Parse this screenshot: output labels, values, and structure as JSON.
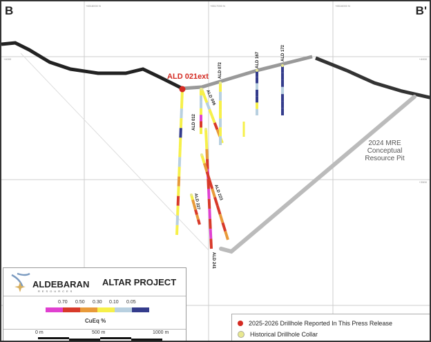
{
  "section": {
    "start_label": "B",
    "end_label": "B'"
  },
  "grid": {
    "northings": [
      "+6518000 N",
      "+6517000 N",
      "+6516000 N"
    ],
    "elevations": [
      "+4000",
      "+3500"
    ]
  },
  "drillholes": [
    {
      "name": "ALD 021ext",
      "type": "new"
    },
    {
      "name": "ALD 012",
      "type": "historical"
    },
    {
      "name": "ALD 006",
      "type": "historical"
    },
    {
      "name": "ALD 072",
      "type": "historical"
    },
    {
      "name": "ALD 167",
      "type": "historical"
    },
    {
      "name": "ALD 172",
      "type": "historical"
    },
    {
      "name": "ALD 241",
      "type": "historical"
    },
    {
      "name": "ALD 223",
      "type": "historical"
    },
    {
      "name": "ALD 227",
      "type": "historical"
    }
  ],
  "pit_label": [
    "2024 MRE",
    "Conceptual",
    "Resource Pit"
  ],
  "legend": {
    "company": "ALDEBARAN",
    "company_sub": "RESOURCES",
    "project": "ALTAR PROJECT",
    "cueq_thresholds": [
      "0.70",
      "0.50",
      "0.30",
      "0.10",
      "0.05"
    ],
    "cueq_colors": [
      "#e040d0",
      "#d83a2a",
      "#e89a3a",
      "#f6f04a",
      "#b8d0e0",
      "#343c8c"
    ],
    "cueq_title": "CuEq %",
    "scale_labels": [
      "0 m",
      "500 m",
      "1000 m"
    ],
    "new_hole_label": "2025-2026 Drillhole Reported In This Press Release",
    "historical_label": "Historical Drillhole Collar",
    "new_hole_color": "#d42a22",
    "historical_color": "#e8e890"
  }
}
